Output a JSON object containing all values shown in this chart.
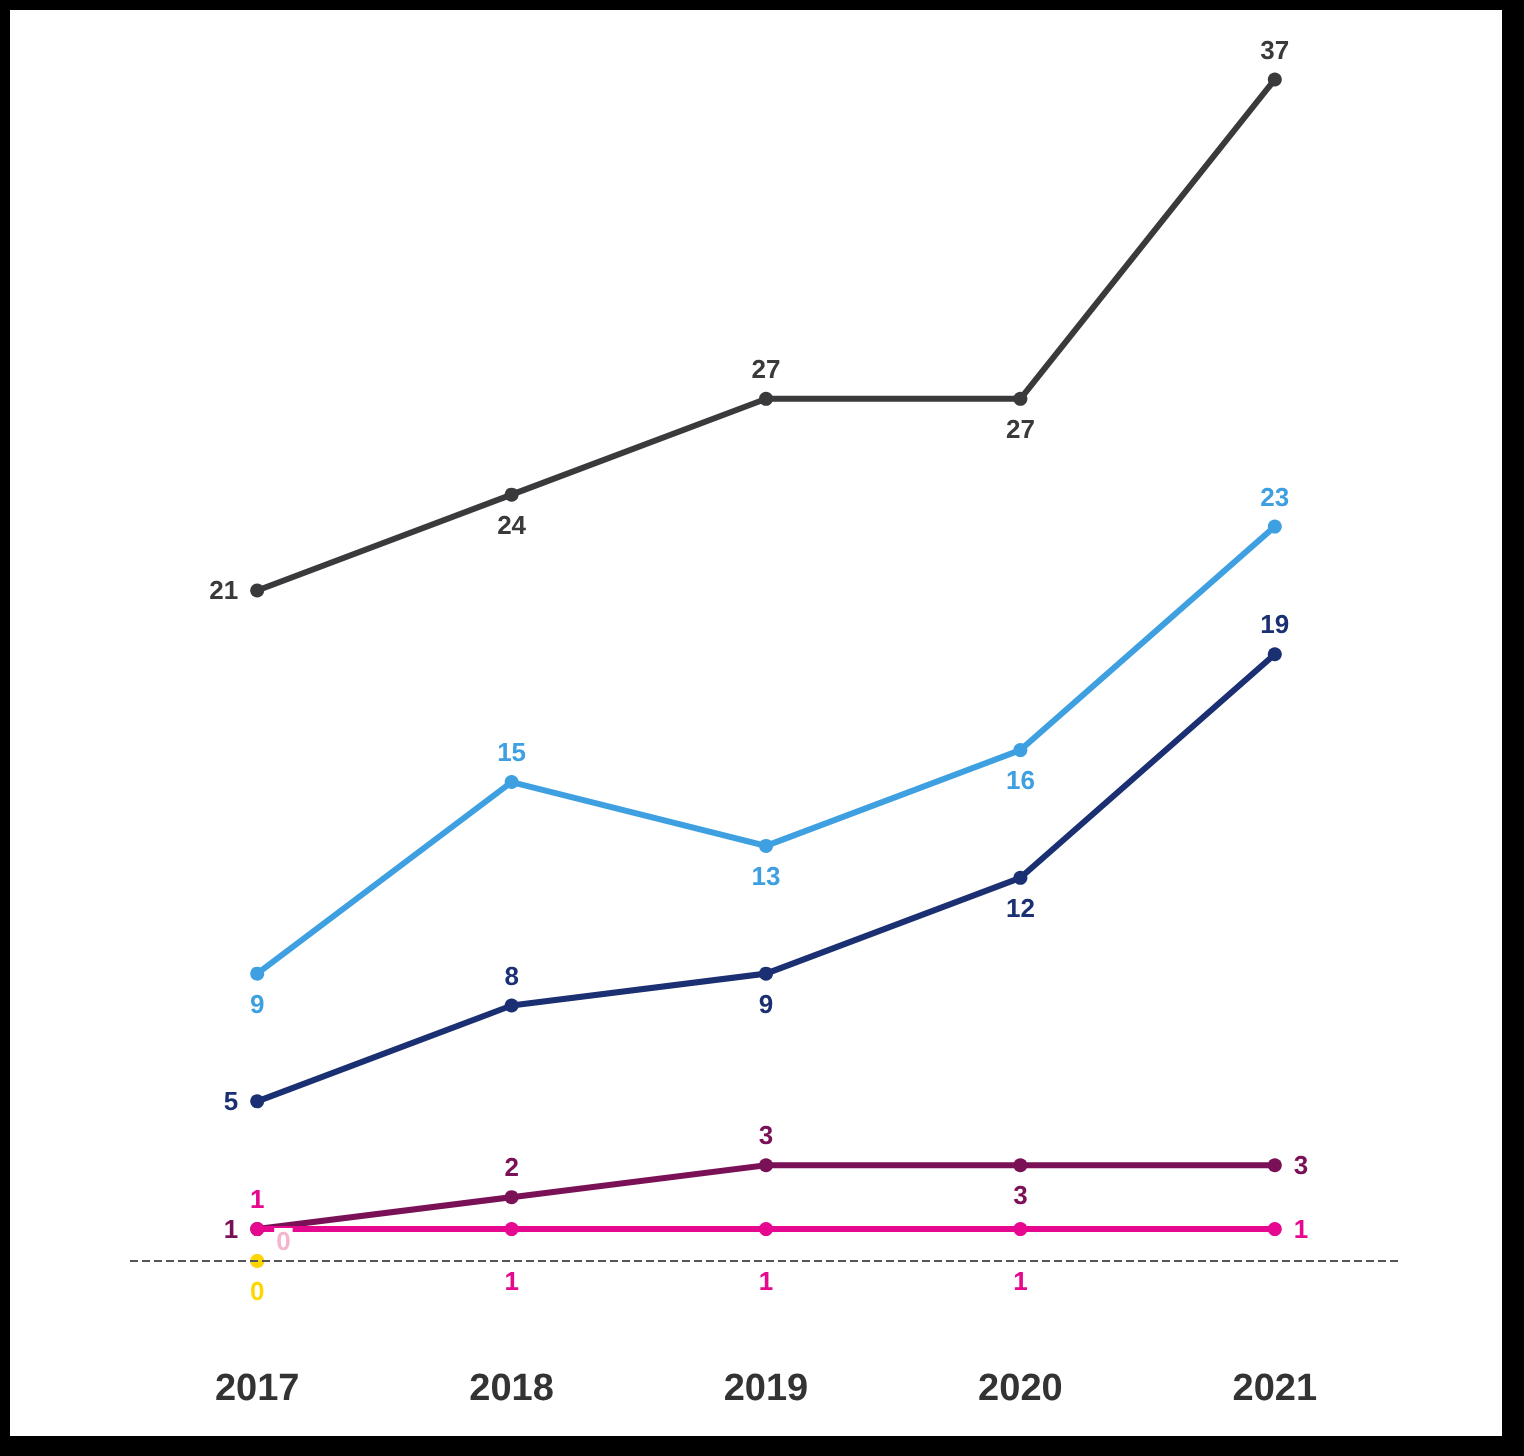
{
  "chart_data": {
    "type": "line",
    "categories": [
      "2017",
      "2018",
      "2019",
      "2020",
      "2021"
    ],
    "series": [
      {
        "color": "#3a3a3c",
        "values": [
          21,
          24,
          27,
          27,
          37
        ]
      },
      {
        "color": "#3ea0e0",
        "values": [
          9,
          15,
          13,
          16,
          23
        ]
      },
      {
        "color": "#1b2f73",
        "values": [
          5,
          8,
          9,
          12,
          19
        ]
      },
      {
        "color": "#7a1157",
        "values": [
          1,
          2,
          3,
          3,
          3
        ]
      },
      {
        "color": "#e6088f",
        "values": [
          1,
          1,
          1,
          1,
          1
        ]
      },
      {
        "color": "#f4b6cf",
        "values": [
          0,
          null,
          null,
          null,
          null
        ]
      },
      {
        "color": "#ffd700",
        "values": [
          0,
          null,
          null,
          null,
          null
        ]
      }
    ],
    "tick_labels": "x",
    "marker": "circle",
    "line_style": "solid",
    "data_labels": true,
    "ref_lines": [
      {
        "axis": "y",
        "value": 0,
        "color": "#555555",
        "line_style": "dashed"
      }
    ]
  }
}
